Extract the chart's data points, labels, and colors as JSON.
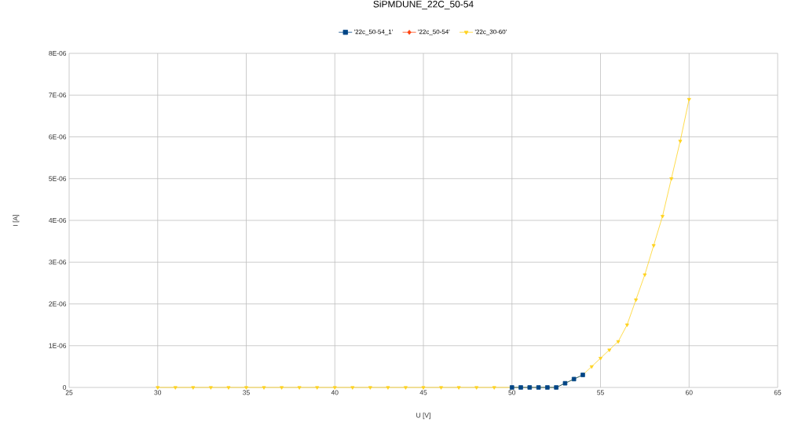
{
  "chart_data": {
    "type": "line",
    "title": "SiPMDUNE_22C_50-54",
    "xlabel": "U [V]",
    "ylabel": "I [A]",
    "xlim": [
      25,
      65
    ],
    "xticks": [
      25,
      30,
      35,
      40,
      45,
      50,
      55,
      60,
      65
    ],
    "ylim": [
      0,
      8e-06
    ],
    "yticks": [
      {
        "value": 0,
        "label": "0"
      },
      {
        "value": 1e-06,
        "label": "1E-06"
      },
      {
        "value": 2e-06,
        "label": "2E-06"
      },
      {
        "value": 3e-06,
        "label": "3E-06"
      },
      {
        "value": 4e-06,
        "label": "4E-06"
      },
      {
        "value": 5e-06,
        "label": "5E-06"
      },
      {
        "value": 6e-06,
        "label": "6E-06"
      },
      {
        "value": 7e-06,
        "label": "7E-06"
      },
      {
        "value": 8e-06,
        "label": "8E-06"
      }
    ],
    "grid": true,
    "legend": "top",
    "line_style": "solid",
    "series": [
      {
        "name": "'22c_50-54_1'",
        "color": "#004586",
        "marker": "square",
        "x": [
          50,
          50.5,
          51,
          51.5,
          52,
          52.5,
          53,
          53.5,
          54
        ],
        "values": [
          0,
          0,
          0,
          0,
          0,
          0,
          1e-07,
          2e-07,
          3e-07
        ]
      },
      {
        "name": "'22c_50-54'",
        "color": "#ff420e",
        "marker": "diamond"
      },
      {
        "name": "'22c_30-60'",
        "color": "#ffd320",
        "marker": "triangle",
        "x": [
          30,
          31,
          32,
          33,
          34,
          35,
          36,
          37,
          38,
          39,
          40,
          41,
          42,
          43,
          44,
          45,
          46,
          47,
          48,
          49,
          50,
          51,
          52,
          52.5,
          53,
          53.5,
          54,
          54.5,
          55,
          55.5,
          56,
          56.5,
          57,
          57.5,
          58,
          58.5,
          59,
          59.5,
          60
        ],
        "values": [
          0,
          0,
          0,
          0,
          0,
          0,
          0,
          0,
          0,
          0,
          0,
          0,
          0,
          0,
          0,
          0,
          0,
          0,
          0,
          0,
          0,
          0,
          0,
          0,
          1e-07,
          2e-07,
          3e-07,
          5e-07,
          7e-07,
          9e-07,
          1.1e-06,
          1.5e-06,
          2.1e-06,
          2.7e-06,
          3.4e-06,
          4.1e-06,
          5e-06,
          5.9e-06,
          6.9e-06
        ]
      }
    ]
  }
}
